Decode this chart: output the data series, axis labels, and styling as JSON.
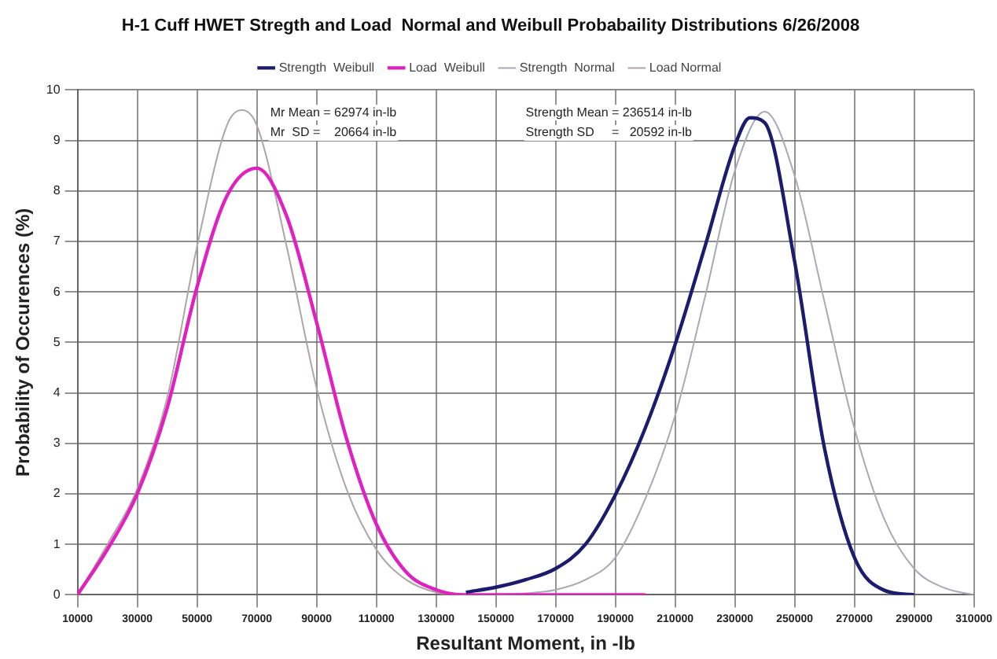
{
  "chart_data": {
    "type": "line",
    "title": "H-1 Cuff HWET Stregth and Load  Normal and Weibull Probabaility Distributions 6/26/2008",
    "xlabel": "Resultant Moment, in -lb",
    "ylabel": "Probability of Occurences (%)",
    "series": [
      {
        "name": "Strength  Weibull",
        "color": "#1c1c6e",
        "x": [
          140000,
          150000,
          160000,
          170000,
          180000,
          190000,
          200000,
          210000,
          220000,
          230000,
          235000,
          240000,
          250000,
          260000,
          270000,
          280000,
          290000
        ],
        "values": [
          0.05,
          0.15,
          0.3,
          0.52,
          1.0,
          1.98,
          3.3,
          4.96,
          6.9,
          8.9,
          9.45,
          9.35,
          6.6,
          2.9,
          0.74,
          0.09,
          0
        ]
      },
      {
        "name": "Load  Weibull",
        "color": "#e020c0",
        "x": [
          10000,
          20000,
          30000,
          40000,
          50000,
          60000,
          70000,
          80000,
          90000,
          100000,
          110000,
          120000,
          130000,
          140000,
          150000,
          160000,
          170000,
          180000,
          190000,
          200000
        ],
        "values": [
          0,
          0.9,
          2.0,
          3.7,
          6.1,
          7.9,
          8.45,
          7.5,
          5.4,
          3.1,
          1.4,
          0.45,
          0.1,
          0,
          0,
          0,
          0,
          0,
          0,
          0
        ]
      },
      {
        "name": "Strength  Normal",
        "color": "#a8a8b8",
        "x": [
          150000,
          160000,
          170000,
          180000,
          190000,
          200000,
          210000,
          220000,
          230000,
          240000,
          250000,
          260000,
          270000,
          280000,
          290000,
          300000,
          310000
        ],
        "values": [
          0,
          0.03,
          0.1,
          0.3,
          0.74,
          1.9,
          3.55,
          5.9,
          8.4,
          9.57,
          8.3,
          5.8,
          3.3,
          1.5,
          0.52,
          0.14,
          0
        ]
      },
      {
        "name": "Load Normal",
        "color": "#b0a4a4",
        "x": [
          10000,
          20000,
          30000,
          40000,
          50000,
          60000,
          65000,
          70000,
          80000,
          90000,
          100000,
          110000,
          120000,
          130000,
          140000
        ],
        "values": [
          0,
          1.0,
          2.1,
          3.9,
          6.9,
          9.3,
          9.6,
          9.3,
          6.9,
          4.1,
          2.1,
          0.9,
          0.3,
          0.05,
          0
        ]
      }
    ],
    "xlim": [
      10000,
      310000
    ],
    "xticks": [
      10000,
      30000,
      50000,
      70000,
      90000,
      110000,
      130000,
      150000,
      170000,
      190000,
      210000,
      230000,
      250000,
      270000,
      290000,
      310000
    ],
    "ylim": [
      0,
      10
    ],
    "yticks": [
      0,
      1,
      2,
      3,
      4,
      5,
      6,
      7,
      8,
      9,
      10
    ],
    "grid": true,
    "legend": "top",
    "marker": "none",
    "line_style": "solid",
    "annotations": [
      "Mr Mean = 62974 in-lb",
      "Mr  SD =    20664 in-lb",
      "Strength Mean = 236514 in-lb",
      "Strength SD     =   20592 in-lb"
    ]
  }
}
